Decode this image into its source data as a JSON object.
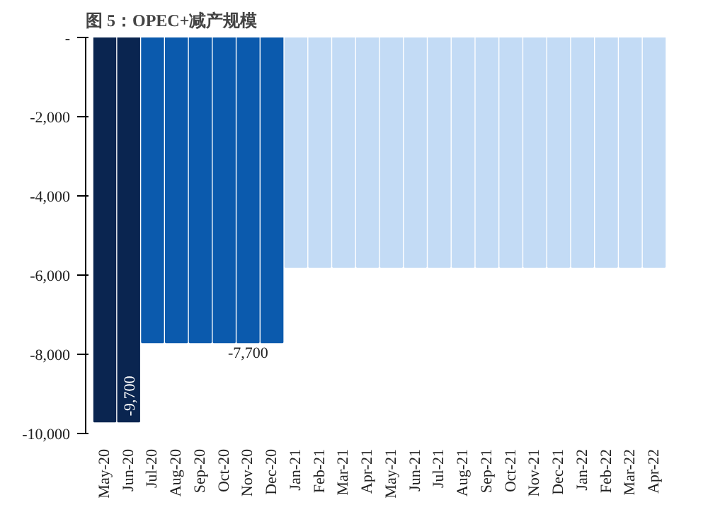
{
  "chart_data": {
    "type": "bar",
    "title": "图 5：OPEC+减产规模",
    "categories": [
      "May-20",
      "Jun-20",
      "Jul-20",
      "Aug-20",
      "Sep-20",
      "Oct-20",
      "Nov-20",
      "Dec-20",
      "Jan-21",
      "Feb-21",
      "Mar-21",
      "Apr-21",
      "May-21",
      "Jun-21",
      "Jul-21",
      "Aug-21",
      "Sep-21",
      "Oct-21",
      "Nov-21",
      "Dec-21",
      "Jan-22",
      "Feb-22",
      "Mar-22",
      "Apr-22"
    ],
    "values": [
      -9700,
      -9700,
      -7700,
      -7700,
      -7700,
      -7700,
      -7700,
      -7700,
      -5800,
      -5800,
      -5800,
      -5800,
      -5800,
      -5800,
      -5800,
      -5800,
      -5800,
      -5800,
      -5800,
      -5800,
      -5800,
      -5800,
      -5800,
      -5800
    ],
    "colors": [
      "#0a2550",
      "#0a2550",
      "#0b5aad",
      "#0b5aad",
      "#0b5aad",
      "#0b5aad",
      "#0b5aad",
      "#0b5aad",
      "#c3dbf5",
      "#c3dbf5",
      "#c3dbf5",
      "#c3dbf5",
      "#c3dbf5",
      "#c3dbf5",
      "#c3dbf5",
      "#c3dbf5",
      "#c3dbf5",
      "#c3dbf5",
      "#c3dbf5",
      "#c3dbf5",
      "#c3dbf5",
      "#c3dbf5",
      "#c3dbf5",
      "#c3dbf5"
    ],
    "value_labels": [
      null,
      "-9,700",
      null,
      null,
      null,
      null,
      "-7,700",
      null,
      null,
      null,
      null,
      null,
      null,
      null,
      null,
      null,
      null,
      null,
      null,
      null,
      null,
      null,
      null,
      null
    ],
    "ylim": [
      -10000,
      0
    ],
    "yticks": [
      {
        "value": 0,
        "label": "-"
      },
      {
        "value": -2000,
        "label": "-2,000"
      },
      {
        "value": -4000,
        "label": "-4,000"
      },
      {
        "value": -6000,
        "label": "-6,000"
      },
      {
        "value": -8000,
        "label": "-8,000"
      },
      {
        "value": -10000,
        "label": "-10,000"
      }
    ],
    "grid": false
  }
}
